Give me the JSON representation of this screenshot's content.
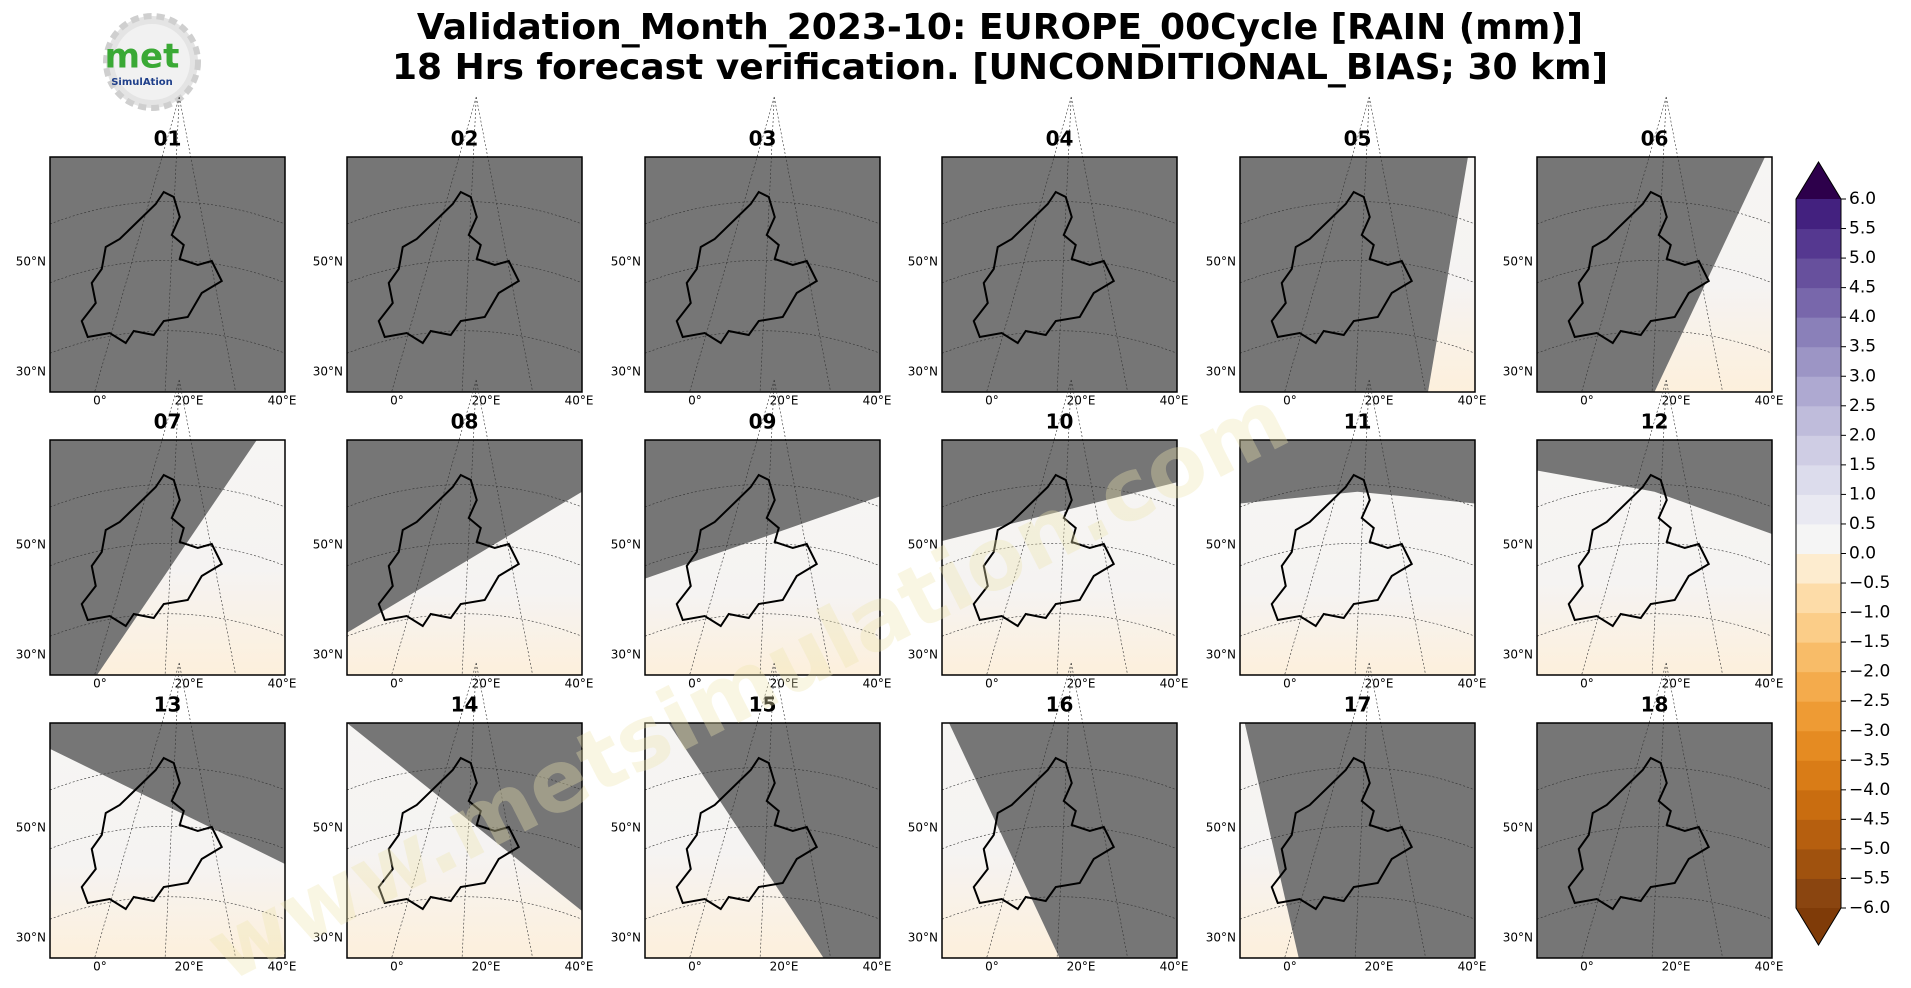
{
  "header": {
    "title": [
      "Validation_Month_2023-10: EUROPE_00Cycle [RAIN (mm)]",
      "18 Hrs forecast verification. [UNCONDITIONAL_BIAS; 30 km]"
    ],
    "logo": {
      "main": "met",
      "sub": "SimulAtion"
    }
  },
  "panels": [
    {
      "title": "01"
    },
    {
      "title": "02"
    },
    {
      "title": "03"
    },
    {
      "title": "04"
    },
    {
      "title": "05"
    },
    {
      "title": "06"
    },
    {
      "title": "07"
    },
    {
      "title": "08"
    },
    {
      "title": "09"
    },
    {
      "title": "10"
    },
    {
      "title": "11"
    },
    {
      "title": "12"
    },
    {
      "title": "13"
    },
    {
      "title": "14"
    },
    {
      "title": "15"
    },
    {
      "title": "16"
    },
    {
      "title": "17"
    },
    {
      "title": "18"
    }
  ],
  "axes": {
    "lat_labels": [
      "50°N",
      "30°N"
    ],
    "lon_labels": [
      "0°",
      "20°E",
      "40°E"
    ]
  },
  "colorbar": {
    "lim": [
      -6,
      6
    ],
    "ticks": [
      {
        "value": 6,
        "label": "6.0"
      },
      {
        "value": 5.5,
        "label": "5.5"
      },
      {
        "value": 5,
        "label": "5.0"
      },
      {
        "value": 4.5,
        "label": "4.5"
      },
      {
        "value": 4,
        "label": "4.0"
      },
      {
        "value": 3.5,
        "label": "3.5"
      },
      {
        "value": 3,
        "label": "3.0"
      },
      {
        "value": 2.5,
        "label": "2.5"
      },
      {
        "value": 2,
        "label": "2.0"
      },
      {
        "value": 1.5,
        "label": "1.5"
      },
      {
        "value": 1,
        "label": "1.0"
      },
      {
        "value": 0.5,
        "label": "0.5"
      },
      {
        "value": 0,
        "label": "0.0"
      },
      {
        "value": -0.5,
        "label": "−0.5"
      },
      {
        "value": -1,
        "label": "−1.0"
      },
      {
        "value": -1.5,
        "label": "−1.5"
      },
      {
        "value": -2,
        "label": "−2.0"
      },
      {
        "value": -2.5,
        "label": "−2.5"
      },
      {
        "value": -3,
        "label": "−3.0"
      },
      {
        "value": -3.5,
        "label": "−3.5"
      },
      {
        "value": -4,
        "label": "−4.0"
      },
      {
        "value": -4.5,
        "label": "−4.5"
      },
      {
        "value": -5,
        "label": "−5.0"
      },
      {
        "value": -5.5,
        "label": "−5.5"
      },
      {
        "value": -6,
        "label": "−6.0"
      }
    ],
    "colors": [
      "#8a4510",
      "#a0520e",
      "#b65f0f",
      "#c96d10",
      "#d97c17",
      "#e58b22",
      "#ee9b34",
      "#f4ab4c",
      "#f8bc68",
      "#fbcd88",
      "#fddca8",
      "#fdeccf",
      "#f5f5f5",
      "#e9e9f2",
      "#dcdcec",
      "#cfcde4",
      "#bfbcdb",
      "#aea9d1",
      "#9c95c5",
      "#8a80b9",
      "#7867ab",
      "#67509d",
      "#553890",
      "#43217f"
    ],
    "under_color": "#7f3b08",
    "over_color": "#2d004b"
  },
  "watermark": "www.metsimulation.com"
}
